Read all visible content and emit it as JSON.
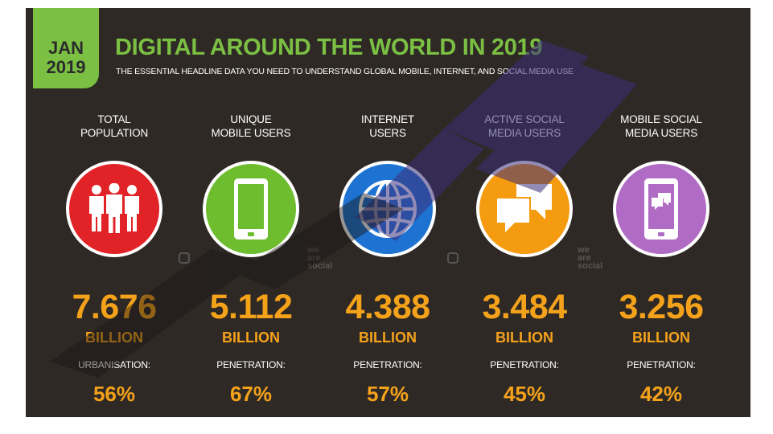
{
  "header": {
    "month": "JAN",
    "year": "2019",
    "title": "DIGITAL AROUND THE WORLD IN 2019",
    "subtitle": "THE ESSENTIAL HEADLINE DATA YOU NEED TO UNDERSTAND GLOBAL MOBILE, INTERNET, AND SOCIAL MEDIA USE"
  },
  "colors": {
    "background": "#2e2925",
    "accent_green": "#7bc043",
    "value_orange": "#f5a21b",
    "population_red": "#e12328",
    "mobile_green": "#6dbd2e",
    "internet_blue": "#1e73d2",
    "social_orange": "#f59b0f",
    "mobile_social_purple": "#b06cc4"
  },
  "stats": [
    {
      "label_1": "TOTAL",
      "label_2": "POPULATION",
      "icon": "people-icon",
      "value": "7.676",
      "unit": "BILLION",
      "metric_label": "URBANISATION:",
      "metric_value": "56%"
    },
    {
      "label_1": "UNIQUE",
      "label_2": "MOBILE USERS",
      "icon": "mobile-phone-icon",
      "value": "5.112",
      "unit": "BILLION",
      "metric_label": "PENETRATION:",
      "metric_value": "67%"
    },
    {
      "label_1": "INTERNET",
      "label_2": "USERS",
      "icon": "globe-icon",
      "value": "4.388",
      "unit": "BILLION",
      "metric_label": "PENETRATION:",
      "metric_value": "57%"
    },
    {
      "label_1": "ACTIVE SOCIAL",
      "label_2": "MEDIA USERS",
      "icon": "chat-bubbles-icon",
      "value": "3.484",
      "unit": "BILLION",
      "metric_label": "PENETRATION:",
      "metric_value": "45%"
    },
    {
      "label_1": "MOBILE SOCIAL",
      "label_2": "MEDIA USERS",
      "icon": "mobile-chat-icon",
      "value": "3.256",
      "unit": "BILLION",
      "metric_label": "PENETRATION:",
      "metric_value": "42%"
    }
  ],
  "branding": {
    "mark_1": "we",
    "mark_2": "are",
    "mark_3": "social"
  }
}
